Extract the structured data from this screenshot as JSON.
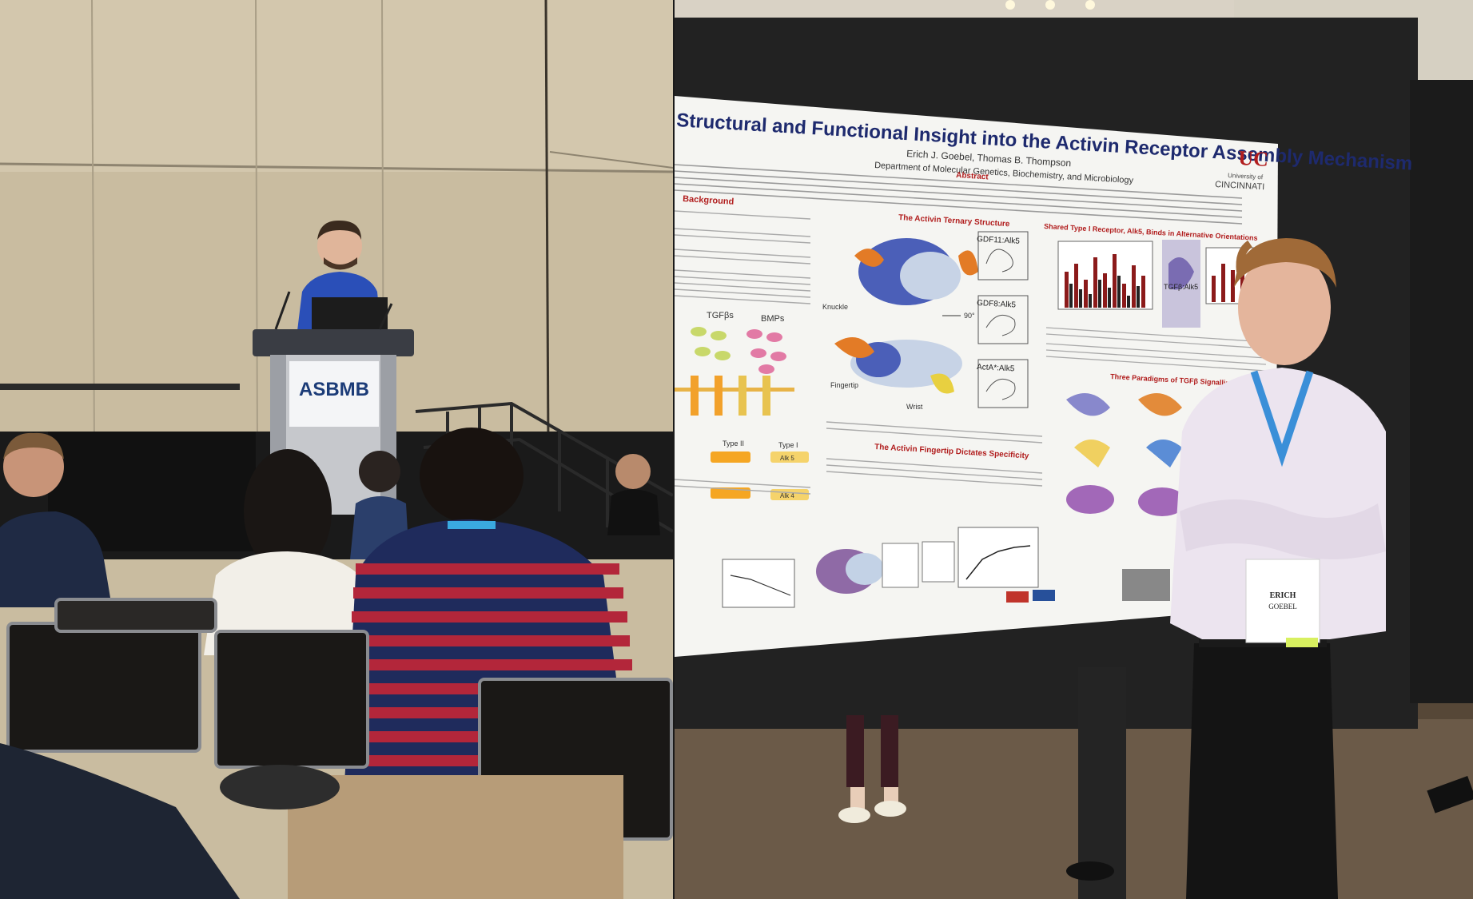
{
  "left_photo": {
    "podium_sign": "ASBMB"
  },
  "right_photo": {
    "poster": {
      "title": "Structural and Functional Insight into the Activin Receptor Assembly Mechanism",
      "authors": "Erich J. Goebel, Thomas B. Thompson",
      "department": "Department of Molecular Genetics, Biochemistry, and Microbiology",
      "university_top": "University of",
      "university_name": "CINCINNATI",
      "abstract_heading": "Abstract",
      "background_heading": "Background",
      "ternary_heading": "The Activin Ternary Structure",
      "shared_heading": "Shared Type I Receptor, Alk5, Binds in Alternative Orientations",
      "fingertip_heading": "The Activin Fingertip Dictates Specificity",
      "paradigms_heading": "Three Paradigms of TGFβ Signalling",
      "structure_labels": [
        "Knuckle",
        "Fingertip",
        "Wrist",
        "90°"
      ],
      "panel_labels": [
        "GDF11:Alk5",
        "GDF8:Alk5",
        "ActA*:Alk5",
        "TGFβ:Alk5"
      ],
      "ligand_family_labels": [
        "TGFβs",
        "BMPs"
      ],
      "receptor_labels": [
        "Type II",
        "Type I",
        "Alk 5",
        "Alk 4"
      ]
    },
    "badge": {
      "first_name": "ERICH",
      "last_name": "GOEBEL"
    }
  },
  "colors": {
    "wall": "#cbbfa3",
    "carpet": "#6b5a48",
    "poster_board": "#222222",
    "title_blue": "#1e2a6e",
    "heading_red": "#b11d1d",
    "shirt_blue": "#2a4fb8",
    "sweater_red": "#b3263a",
    "sweater_navy": "#1f2b5c"
  }
}
